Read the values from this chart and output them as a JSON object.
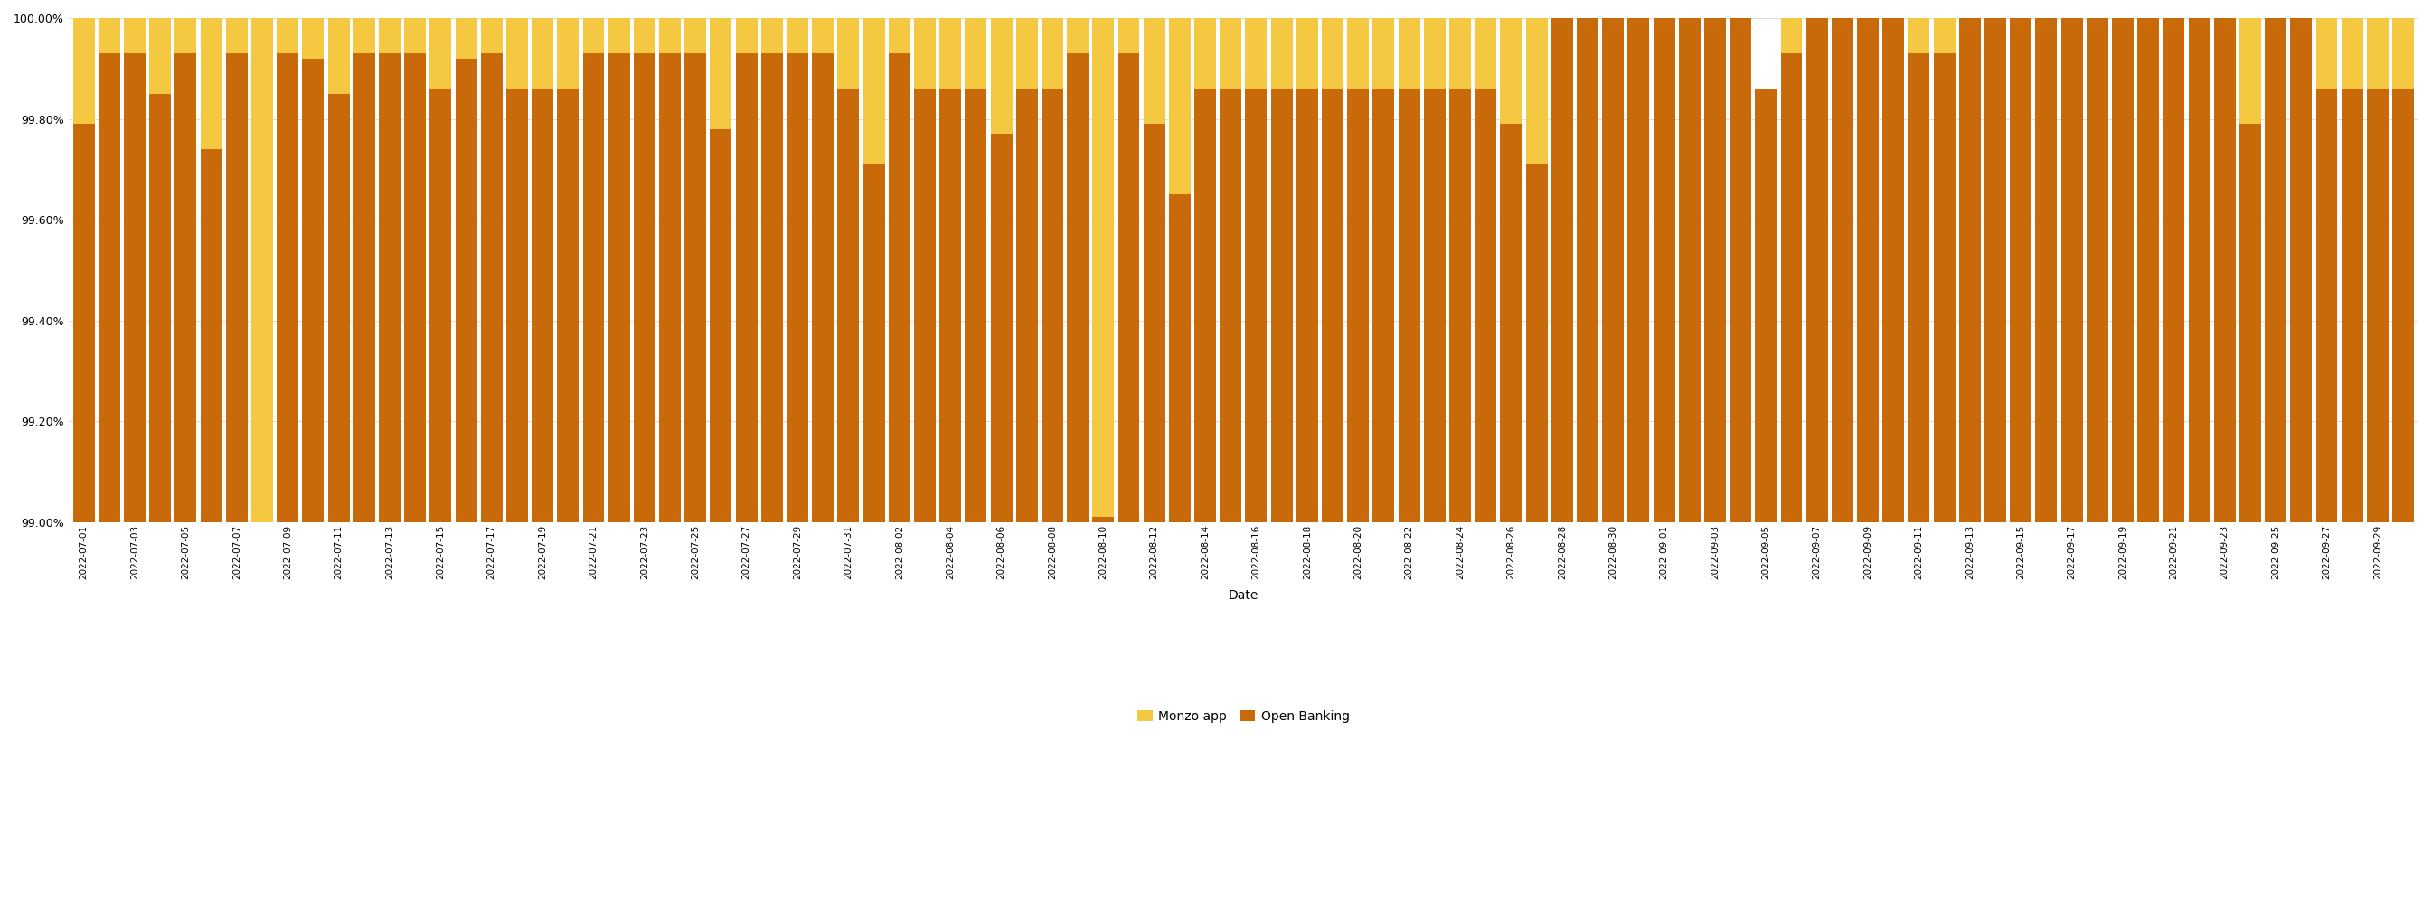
{
  "all_dates": [
    "2022-07-01",
    "2022-07-02",
    "2022-07-03",
    "2022-07-04",
    "2022-07-05",
    "2022-07-06",
    "2022-07-07",
    "2022-07-08",
    "2022-07-09",
    "2022-07-10",
    "2022-07-11",
    "2022-07-12",
    "2022-07-13",
    "2022-07-14",
    "2022-07-15",
    "2022-07-16",
    "2022-07-17",
    "2022-07-18",
    "2022-07-19",
    "2022-07-20",
    "2022-07-21",
    "2022-07-22",
    "2022-07-23",
    "2022-07-24",
    "2022-07-25",
    "2022-07-26",
    "2022-07-27",
    "2022-07-28",
    "2022-07-29",
    "2022-07-30",
    "2022-07-31",
    "2022-08-01",
    "2022-08-02",
    "2022-08-03",
    "2022-08-04",
    "2022-08-05",
    "2022-08-06",
    "2022-08-07",
    "2022-08-08",
    "2022-08-09",
    "2022-08-10",
    "2022-08-11",
    "2022-08-12",
    "2022-08-13",
    "2022-08-14",
    "2022-08-15",
    "2022-08-16",
    "2022-08-17",
    "2022-08-18",
    "2022-08-19",
    "2022-08-20",
    "2022-08-21",
    "2022-08-22",
    "2022-08-23",
    "2022-08-24",
    "2022-08-25",
    "2022-08-26",
    "2022-08-27",
    "2022-08-28",
    "2022-08-29",
    "2022-08-30",
    "2022-08-31",
    "2022-09-01",
    "2022-09-02",
    "2022-09-03",
    "2022-09-04",
    "2022-09-05",
    "2022-09-06",
    "2022-09-07",
    "2022-09-08",
    "2022-09-09",
    "2022-09-10",
    "2022-09-11",
    "2022-09-12",
    "2022-09-13",
    "2022-09-14",
    "2022-09-15",
    "2022-09-16",
    "2022-09-17",
    "2022-09-18",
    "2022-09-19",
    "2022-09-20",
    "2022-09-21",
    "2022-09-22",
    "2022-09-23",
    "2022-09-24",
    "2022-09-25",
    "2022-09-26",
    "2022-09-27",
    "2022-09-28",
    "2022-09-29",
    "2022-09-30"
  ],
  "monzo_app": [
    100.0,
    100.0,
    100.0,
    100.0,
    100.0,
    100.0,
    100.0,
    100.0,
    100.0,
    100.0,
    100.0,
    100.0,
    100.0,
    100.0,
    100.0,
    100.0,
    100.0,
    100.0,
    100.0,
    100.0,
    100.0,
    100.0,
    100.0,
    100.0,
    100.0,
    100.0,
    100.0,
    100.0,
    100.0,
    100.0,
    100.0,
    100.0,
    100.0,
    100.0,
    100.0,
    100.0,
    100.0,
    100.0,
    100.0,
    100.0,
    100.0,
    100.0,
    100.0,
    100.0,
    100.0,
    100.0,
    100.0,
    100.0,
    100.0,
    100.0,
    100.0,
    100.0,
    100.0,
    100.0,
    100.0,
    100.0,
    100.0,
    100.0,
    100.0,
    100.0,
    100.0,
    100.0,
    100.0,
    100.0,
    100.0,
    100.0,
    99.86,
    100.0,
    100.0,
    100.0,
    100.0,
    100.0,
    100.0,
    100.0,
    100.0,
    100.0,
    100.0,
    100.0,
    100.0,
    100.0,
    100.0,
    100.0,
    100.0,
    100.0,
    100.0,
    100.0,
    100.0,
    100.0,
    100.0,
    100.0,
    100.0,
    100.0
  ],
  "open_banking": [
    99.79,
    99.93,
    99.93,
    99.85,
    99.93,
    99.74,
    99.93,
    98.75,
    99.93,
    99.92,
    99.85,
    99.93,
    99.93,
    99.93,
    99.86,
    99.92,
    99.93,
    99.86,
    99.86,
    99.86,
    99.93,
    99.93,
    99.93,
    99.93,
    99.93,
    99.78,
    99.93,
    99.93,
    99.93,
    99.93,
    99.86,
    99.71,
    99.93,
    99.86,
    99.86,
    99.86,
    99.77,
    99.86,
    99.86,
    99.93,
    99.01,
    99.93,
    99.79,
    99.65,
    99.86,
    99.86,
    99.86,
    99.86,
    99.86,
    99.86,
    99.86,
    99.86,
    99.86,
    99.86,
    99.86,
    99.86,
    99.79,
    99.71,
    100.0,
    100.0,
    100.0,
    100.0,
    100.0,
    100.0,
    100.0,
    100.0,
    99.86,
    99.93,
    100.0,
    100.0,
    100.0,
    100.0,
    99.93,
    99.93,
    100.0,
    100.0,
    100.0,
    100.0,
    100.0,
    100.0,
    100.0,
    100.0,
    100.0,
    100.0,
    100.0,
    99.79,
    100.0,
    100.0,
    99.86,
    99.86,
    99.86,
    99.86
  ],
  "monzo_color": "#F5C842",
  "open_banking_color": "#C8690A",
  "xlabel": "Date",
  "ylim_min": 99.0,
  "ylim_max": 100.0,
  "background_color": "#ffffff",
  "grid_color": "#dddddd",
  "tick_label_fontsize": 7.5,
  "axis_label_fontsize": 10,
  "legend_fontsize": 10
}
